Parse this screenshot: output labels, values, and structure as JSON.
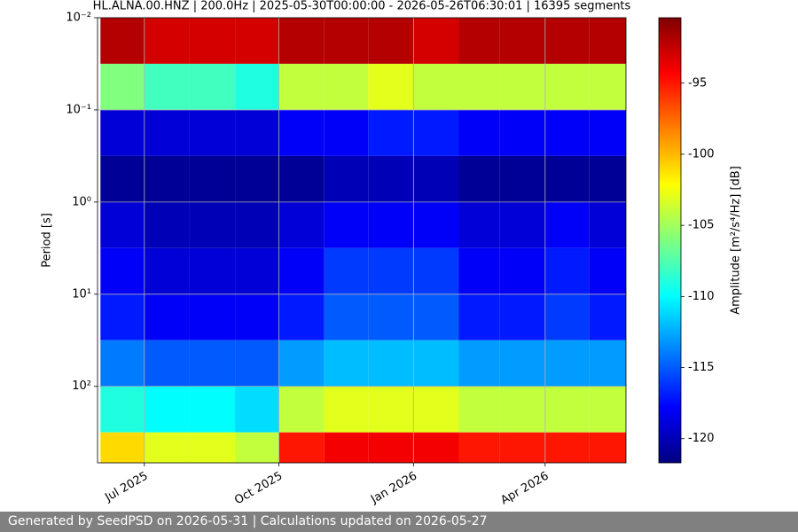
{
  "chart_data": {
    "type": "spectrogram",
    "title": "HL.ALNA.00.HNZ | 200.0Hz | 2025-05-30T00:00:00 - 2026-05-26T06:30:01 | 16395 segments",
    "y_label": "Period [s]",
    "colorbar_label": "Amplitude [m²/s⁴/Hz] [dB]",
    "x": [
      "2025-06",
      "2025-07",
      "2025-08",
      "2025-09",
      "2025-10",
      "2025-11",
      "2025-12",
      "2026-01",
      "2026-02",
      "2026-03",
      "2026-04",
      "2026-05"
    ],
    "xlim": [
      "2025-05-30T00:00:00",
      "2026-05-26T06:30:01"
    ],
    "xticks": [
      {
        "value": "2025-07",
        "label": "Jul 2025"
      },
      {
        "value": "2025-10",
        "label": "Oct 2025"
      },
      {
        "value": "2026-01",
        "label": "Jan 2026"
      },
      {
        "value": "2026-04",
        "label": "Apr 2026"
      }
    ],
    "y_bins": [
      0.01,
      0.0316,
      0.1,
      0.316,
      1,
      3.16,
      10,
      31.6,
      100,
      316,
      676
    ],
    "ylim": [
      0.01,
      676
    ],
    "y_log": true,
    "y_inverted": true,
    "yticks": [
      {
        "value": 0.01,
        "label": "10⁻²"
      },
      {
        "value": 0.1,
        "label": "10⁻¹"
      },
      {
        "value": 1,
        "label": "10⁰"
      },
      {
        "value": 10,
        "label": "10¹"
      },
      {
        "value": 100,
        "label": "10²"
      }
    ],
    "grid": true,
    "colormap": "jet",
    "clim": [
      -121.7,
      -90.4
    ],
    "cticks": [
      -95,
      -100,
      -105,
      -110,
      -115,
      -120
    ],
    "values": [
      [
        -92,
        -93,
        -93,
        -93,
        -92,
        -92,
        -92,
        -93,
        -92,
        -92,
        -92,
        -92
      ],
      [
        -106,
        -108,
        -108,
        -109,
        -104,
        -104,
        -103,
        -104,
        -104,
        -104,
        -104,
        -104
      ],
      [
        -119,
        -119,
        -119,
        -119,
        -118,
        -118,
        -117,
        -117,
        -118,
        -118,
        -118,
        -118
      ],
      [
        -121,
        -121,
        -121,
        -121,
        -121,
        -120,
        -120,
        -120,
        -121,
        -121,
        -121,
        -121
      ],
      [
        -119,
        -120,
        -120,
        -120,
        -119,
        -118,
        -118,
        -118,
        -119,
        -119,
        -118,
        -119
      ],
      [
        -118,
        -119,
        -119,
        -119,
        -118,
        -116,
        -116,
        -116,
        -118,
        -118,
        -117,
        -118
      ],
      [
        -117,
        -118,
        -118,
        -118,
        -117,
        -115,
        -115,
        -115,
        -117,
        -117,
        -116,
        -117
      ],
      [
        -114,
        -115,
        -115,
        -115,
        -113,
        -112,
        -112,
        -112,
        -113,
        -113,
        -113,
        -113
      ],
      [
        -109,
        -110,
        -110,
        -111,
        -104,
        -103,
        -103,
        -103,
        -104,
        -104,
        -104,
        -104
      ],
      [
        -101,
        -103,
        -103,
        -104,
        -95,
        -94,
        -94,
        -94,
        -95,
        -95,
        -95,
        -95
      ]
    ]
  },
  "footer": "Generated by SeedPSD on 2026-05-31 | Calculations updated on 2026-05-27"
}
